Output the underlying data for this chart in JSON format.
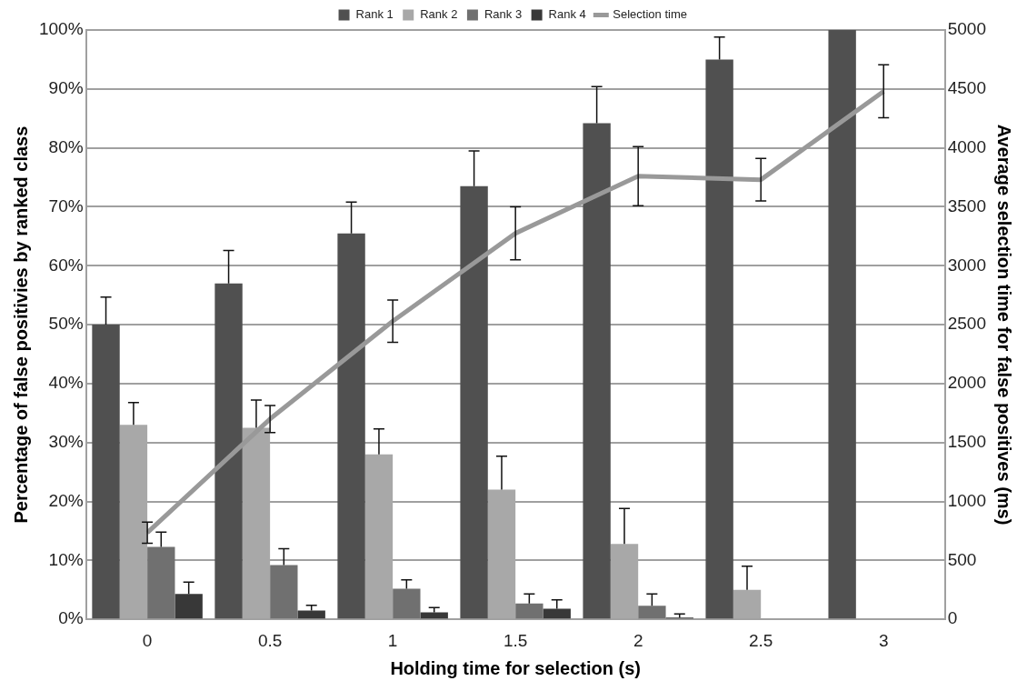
{
  "chart_data": {
    "type": "bar",
    "xlabel": "Holding time for selection (s)",
    "ylabel": "Percentage of false positivies by ranked class",
    "y2label": "Average selection time for false positives (ms)",
    "categories": [
      "0",
      "0.5",
      "1",
      "1.5",
      "2",
      "2.5",
      "3"
    ],
    "series": [
      {
        "name": "Rank 1",
        "color": "#505050",
        "values": [
          50,
          57,
          65.5,
          73.5,
          84.2,
          95,
          100
        ],
        "errors": [
          4.7,
          5.6,
          5.3,
          6,
          6.2,
          3.8,
          null
        ]
      },
      {
        "name": "Rank 2",
        "color": "#a8a8a8",
        "values": [
          33,
          32.5,
          28,
          22,
          12.8,
          5,
          0
        ],
        "errors": [
          3.8,
          4.7,
          4.3,
          5.7,
          6,
          4,
          null
        ]
      },
      {
        "name": "Rank 3",
        "color": "#707070",
        "values": [
          12.3,
          9.2,
          5.2,
          2.7,
          2.3,
          0,
          0
        ],
        "errors": [
          2.5,
          2.8,
          1.5,
          1.6,
          2,
          null,
          null
        ]
      },
      {
        "name": "Rank 4",
        "color": "#383838",
        "values": [
          4.3,
          1.5,
          1.2,
          1.8,
          0.3,
          0,
          0
        ],
        "errors": [
          2,
          0.9,
          0.8,
          1.5,
          0.6,
          null,
          null
        ]
      },
      {
        "name": "Selection time",
        "type": "line",
        "axis": "y2",
        "color": "#999999",
        "marker": "none",
        "values": [
          735,
          1700,
          2530,
          3275,
          3760,
          3730,
          4480
        ],
        "errors": [
          90,
          115,
          180,
          225,
          250,
          180,
          225
        ]
      }
    ],
    "ylim": [
      0,
      100
    ],
    "yticks": [
      {
        "value": 0,
        "label": "0%"
      },
      {
        "value": 10,
        "label": "10%"
      },
      {
        "value": 20,
        "label": "20%"
      },
      {
        "value": 30,
        "label": "30%"
      },
      {
        "value": 40,
        "label": "40%"
      },
      {
        "value": 50,
        "label": "50%"
      },
      {
        "value": 60,
        "label": "60%"
      },
      {
        "value": 70,
        "label": "70%"
      },
      {
        "value": 80,
        "label": "80%"
      },
      {
        "value": 90,
        "label": "90%"
      },
      {
        "value": 100,
        "label": "100%"
      }
    ],
    "y2lim": [
      0,
      5000
    ],
    "y2ticks": [
      0,
      500,
      1000,
      1500,
      2000,
      2500,
      3000,
      3500,
      4000,
      4500,
      5000
    ],
    "grid": "y",
    "legend": "top"
  }
}
